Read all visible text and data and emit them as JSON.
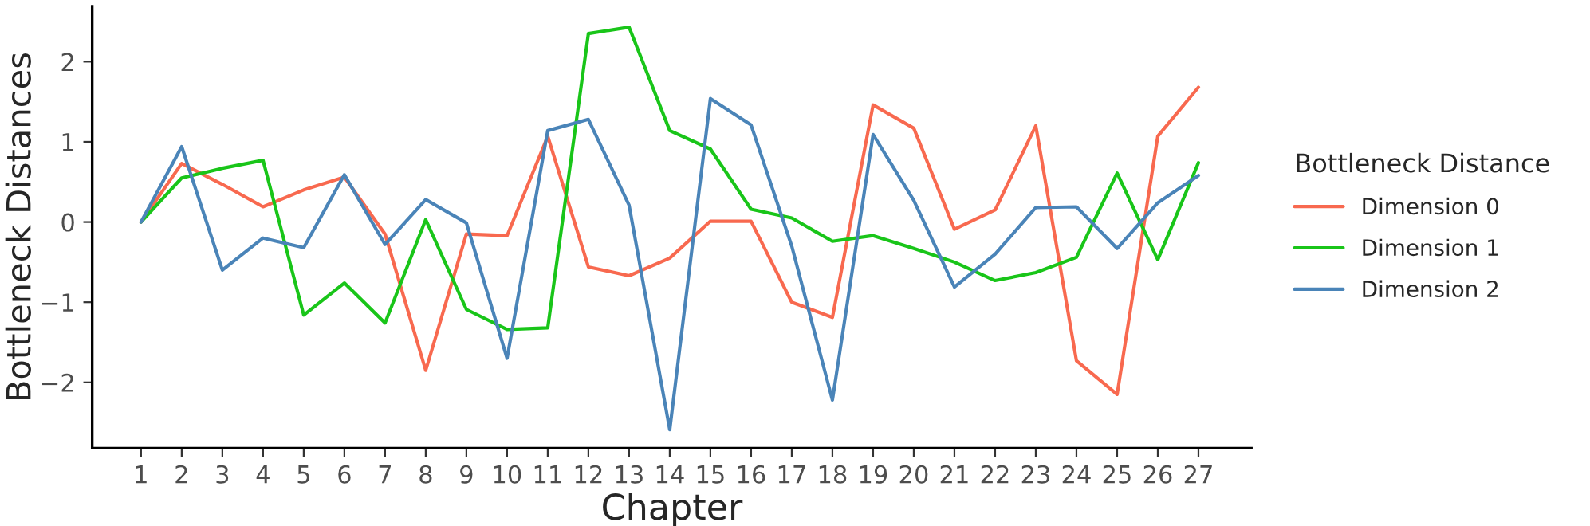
{
  "chart_data": {
    "type": "line",
    "xlabel": "Chapter",
    "ylabel": "Bottleneck Distances",
    "legend_title": "Bottleneck Distance",
    "categories": [
      "1",
      "2",
      "3",
      "4",
      "5",
      "6",
      "7",
      "8",
      "9",
      "10",
      "11",
      "12",
      "13",
      "14",
      "15",
      "16",
      "17",
      "18",
      "19",
      "20",
      "21",
      "22",
      "23",
      "24",
      "25",
      "26",
      "27"
    ],
    "series": [
      {
        "name": "Dimension 0",
        "color": "#f8694f",
        "values": [
          0,
          0.73,
          0.47,
          0.19,
          0.4,
          0.56,
          -0.15,
          -1.85,
          -0.15,
          -0.17,
          1.07,
          -0.56,
          -0.67,
          -0.45,
          0.01,
          0.01,
          -1.0,
          -1.19,
          1.46,
          1.17,
          -0.09,
          0.15,
          1.2,
          -1.73,
          -2.15,
          1.07,
          1.68
        ]
      },
      {
        "name": "Dimension 1",
        "color": "#19c519",
        "values": [
          0,
          0.55,
          0.67,
          0.77,
          -1.16,
          -0.76,
          -1.26,
          0.03,
          -1.09,
          -1.34,
          -1.32,
          2.35,
          2.43,
          1.14,
          0.91,
          0.16,
          0.05,
          -0.24,
          -0.17,
          -0.33,
          -0.5,
          -0.73,
          -0.63,
          -0.44,
          0.61,
          -0.47,
          0.74
        ]
      },
      {
        "name": "Dimension 2",
        "color": "#4a84b8",
        "values": [
          0,
          0.94,
          -0.6,
          -0.2,
          -0.32,
          0.59,
          -0.28,
          0.28,
          -0.01,
          -1.7,
          1.14,
          1.28,
          0.21,
          -2.59,
          1.54,
          1.21,
          -0.3,
          -2.22,
          1.09,
          0.27,
          -0.81,
          -0.4,
          0.18,
          0.19,
          -0.33,
          0.24,
          0.58
        ]
      }
    ],
    "ylim": [
      -2.82,
      2.69
    ],
    "yticks": [
      {
        "value": -2,
        "label": "−2"
      },
      {
        "value": -1,
        "label": "−1"
      },
      0,
      1,
      2
    ],
    "grid": false,
    "legend": "right",
    "marker": "none",
    "line_style": "solid"
  }
}
